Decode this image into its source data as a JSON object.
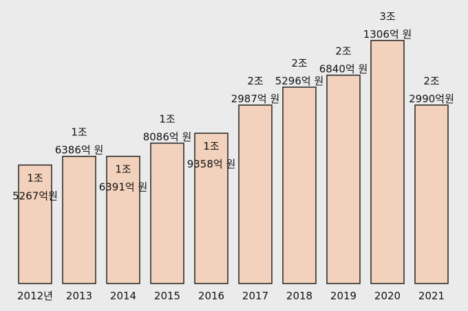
{
  "chart_data": {
    "type": "bar",
    "title": "",
    "xlabel": "",
    "ylabel": "",
    "ylim": [
      0,
      3.5
    ],
    "grid": false,
    "legend": "none",
    "bar_color": "#f2d2bc",
    "bar_edge_color": "#222222",
    "background_color": "#ebebeb",
    "categories": [
      "2012년",
      "2013",
      "2014",
      "2015",
      "2016",
      "2017",
      "2018",
      "2019",
      "2020",
      "2021"
    ],
    "values": [
      1.5267,
      1.6386,
      1.6391,
      1.8086,
      1.9358,
      2.2987,
      2.5296,
      2.684,
      3.1306,
      2.299
    ],
    "unit": "조원",
    "label_lines": [
      [
        "1조",
        "5267억원"
      ],
      [
        "1조",
        "6386억 원"
      ],
      [
        "1조",
        "6391억 원"
      ],
      [
        "1조",
        "8086억 원"
      ],
      [
        "1조",
        "9358억 원"
      ],
      [
        "2조",
        "2987억 원"
      ],
      [
        "2조",
        "5296억 원"
      ],
      [
        "2조",
        "6840억 원"
      ],
      [
        "3조",
        "1306억 원"
      ],
      [
        "2조",
        "2990억원"
      ]
    ]
  }
}
